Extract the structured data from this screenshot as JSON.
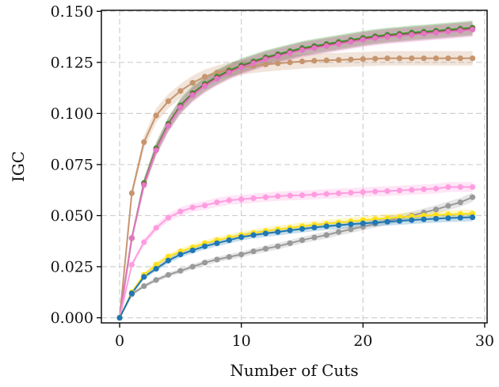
{
  "chart_data": {
    "type": "line",
    "xlabel": "Number of Cuts",
    "ylabel": "IGC",
    "xlim": [
      -1.5,
      30.2
    ],
    "ylim": [
      -0.0025,
      0.1505
    ],
    "xticks": [
      0,
      10,
      20,
      30
    ],
    "xtick_labels": [
      "0",
      "10",
      "20",
      "30"
    ],
    "yticks": [
      0.0,
      0.025,
      0.05,
      0.075,
      0.1,
      0.125,
      0.15
    ],
    "ytick_labels": [
      "0.000",
      "0.025",
      "0.050",
      "0.075",
      "0.100",
      "0.125",
      "0.150"
    ],
    "grid": true,
    "x": [
      0,
      1,
      2,
      3,
      4,
      5,
      6,
      7,
      8,
      9,
      10,
      11,
      12,
      13,
      14,
      15,
      16,
      17,
      18,
      19,
      20,
      21,
      22,
      23,
      24,
      25,
      26,
      27,
      28,
      29
    ],
    "series": [
      {
        "color": "#c7956d",
        "values": [
          0,
          0.061,
          0.086,
          0.099,
          0.106,
          0.111,
          0.115,
          0.118,
          0.12,
          0.1215,
          0.1225,
          0.1233,
          0.124,
          0.1245,
          0.125,
          0.1255,
          0.1258,
          0.126,
          0.1262,
          0.1264,
          0.1266,
          0.1268,
          0.127,
          0.127,
          0.127,
          0.127,
          0.127,
          0.127,
          0.127,
          0.127
        ]
      },
      {
        "color": "#2ca02c",
        "values": [
          0,
          0.039,
          0.066,
          0.083,
          0.095,
          0.104,
          0.11,
          0.1145,
          0.118,
          0.121,
          0.1235,
          0.1255,
          0.1275,
          0.129,
          0.1305,
          0.132,
          0.133,
          0.134,
          0.135,
          0.136,
          0.137,
          0.1378,
          0.1385,
          0.139,
          0.1396,
          0.14,
          0.1405,
          0.141,
          0.1415,
          0.142
        ]
      },
      {
        "color": "#8c564b",
        "values": [
          0,
          0.039,
          0.0655,
          0.0825,
          0.0945,
          0.1035,
          0.1095,
          0.114,
          0.1175,
          0.1205,
          0.123,
          0.125,
          0.127,
          0.1285,
          0.13,
          0.1315,
          0.1325,
          0.1335,
          0.1345,
          0.1355,
          0.1365,
          0.1373,
          0.138,
          0.1385,
          0.139,
          0.1395,
          0.14,
          0.1405,
          0.141,
          0.1415
        ]
      },
      {
        "color": "#e377c2",
        "values": [
          0,
          0.039,
          0.065,
          0.082,
          0.094,
          0.103,
          0.109,
          0.1135,
          0.117,
          0.12,
          0.1225,
          0.1245,
          0.1265,
          0.128,
          0.1295,
          0.131,
          0.132,
          0.133,
          0.134,
          0.135,
          0.136,
          0.1368,
          0.1375,
          0.138,
          0.1385,
          0.139,
          0.1395,
          0.14,
          0.1405,
          0.141
        ]
      },
      {
        "color": "#ff9de0",
        "values": [
          0,
          0.026,
          0.037,
          0.044,
          0.049,
          0.052,
          0.054,
          0.055,
          0.0565,
          0.0575,
          0.058,
          0.0585,
          0.059,
          0.0595,
          0.0598,
          0.06,
          0.0603,
          0.0606,
          0.0609,
          0.0612,
          0.0615,
          0.0618,
          0.062,
          0.0623,
          0.0626,
          0.0629,
          0.0632,
          0.064,
          0.064,
          0.064
        ]
      },
      {
        "color": "#999999",
        "values": [
          0,
          0.0115,
          0.0155,
          0.0185,
          0.021,
          0.023,
          0.025,
          0.027,
          0.0285,
          0.0298,
          0.031,
          0.0325,
          0.0338,
          0.035,
          0.0365,
          0.038,
          0.0393,
          0.0405,
          0.042,
          0.0433,
          0.0446,
          0.046,
          0.0475,
          0.0488,
          0.05,
          0.0515,
          0.053,
          0.0548,
          0.0565,
          0.059
        ]
      },
      {
        "color": "#ffe01a",
        "values": [
          0,
          0.0125,
          0.021,
          0.026,
          0.03,
          0.0325,
          0.0345,
          0.0365,
          0.038,
          0.0393,
          0.0405,
          0.0415,
          0.0425,
          0.0433,
          0.044,
          0.0448,
          0.0455,
          0.046,
          0.0466,
          0.0472,
          0.0478,
          0.0483,
          0.0488,
          0.0492,
          0.0496,
          0.05,
          0.0503,
          0.0506,
          0.0508,
          0.051
        ]
      },
      {
        "color": "#1f77b4",
        "values": [
          0,
          0.012,
          0.02,
          0.024,
          0.028,
          0.031,
          0.033,
          0.035,
          0.0365,
          0.038,
          0.0395,
          0.0405,
          0.0413,
          0.042,
          0.0428,
          0.0435,
          0.0442,
          0.0448,
          0.0453,
          0.0458,
          0.0462,
          0.0466,
          0.047,
          0.0474,
          0.0478,
          0.0482,
          0.0485,
          0.0488,
          0.049,
          0.0492
        ]
      }
    ]
  }
}
